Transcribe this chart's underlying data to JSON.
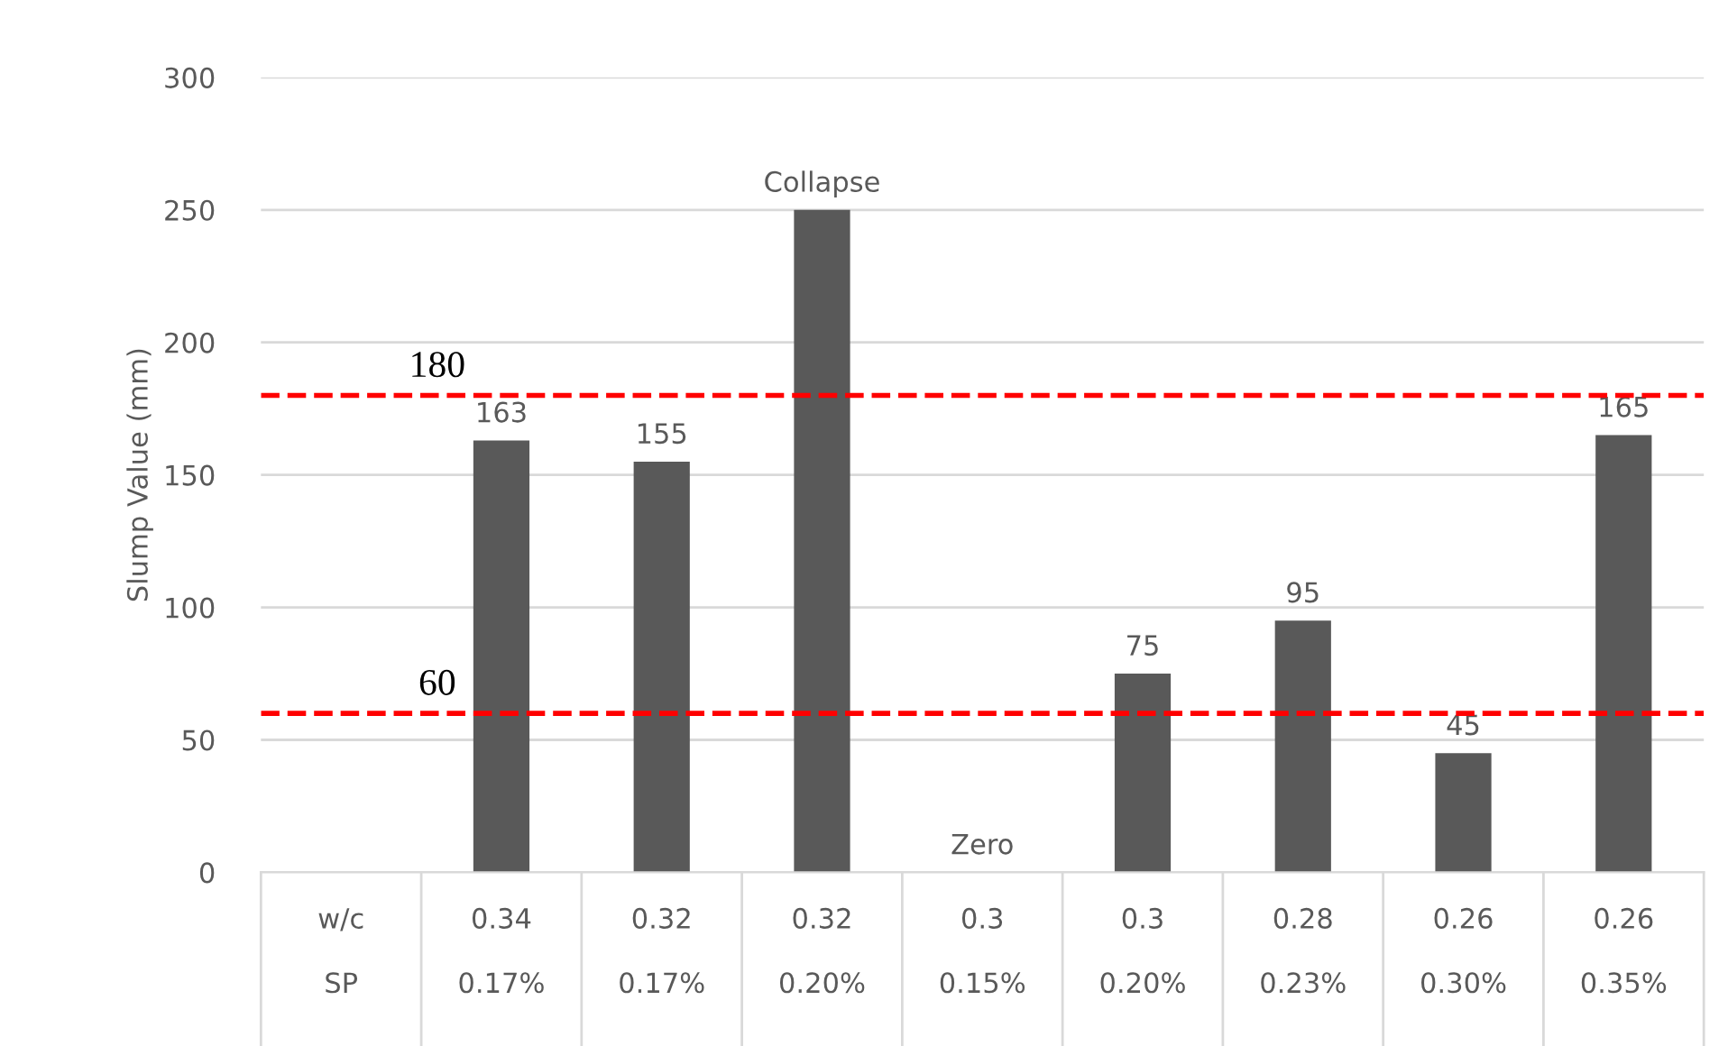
{
  "chart_data": {
    "type": "bar",
    "ylabel": "Slump Value (mm)",
    "categories": [
      "w/c\nSP",
      "0.34\n0.17%",
      "0.32\n0.17%",
      "0.32\n0.20%",
      "0.3\n0.15%",
      "0.3\n0.20%",
      "0.28\n0.23%",
      "0.26\n0.30%",
      "0.26\n0.35%"
    ],
    "values": [
      null,
      163,
      155,
      250,
      0,
      75,
      95,
      45,
      165
    ],
    "value_labels": [
      null,
      "163",
      "155",
      "Collapse",
      "Zero",
      "75",
      "95",
      "45",
      "165"
    ],
    "color": "#595959",
    "ylim": [
      0,
      300
    ],
    "yticks": [
      0,
      50,
      100,
      150,
      200,
      250,
      300
    ],
    "grid": "y",
    "ref_lines": [
      {
        "axis": "y",
        "value": 180,
        "label": "180",
        "color": "#ff0000",
        "line_style": "dashed"
      },
      {
        "axis": "y",
        "value": 60,
        "label": "60",
        "color": "#ff0000",
        "line_style": "dashed"
      }
    ]
  }
}
